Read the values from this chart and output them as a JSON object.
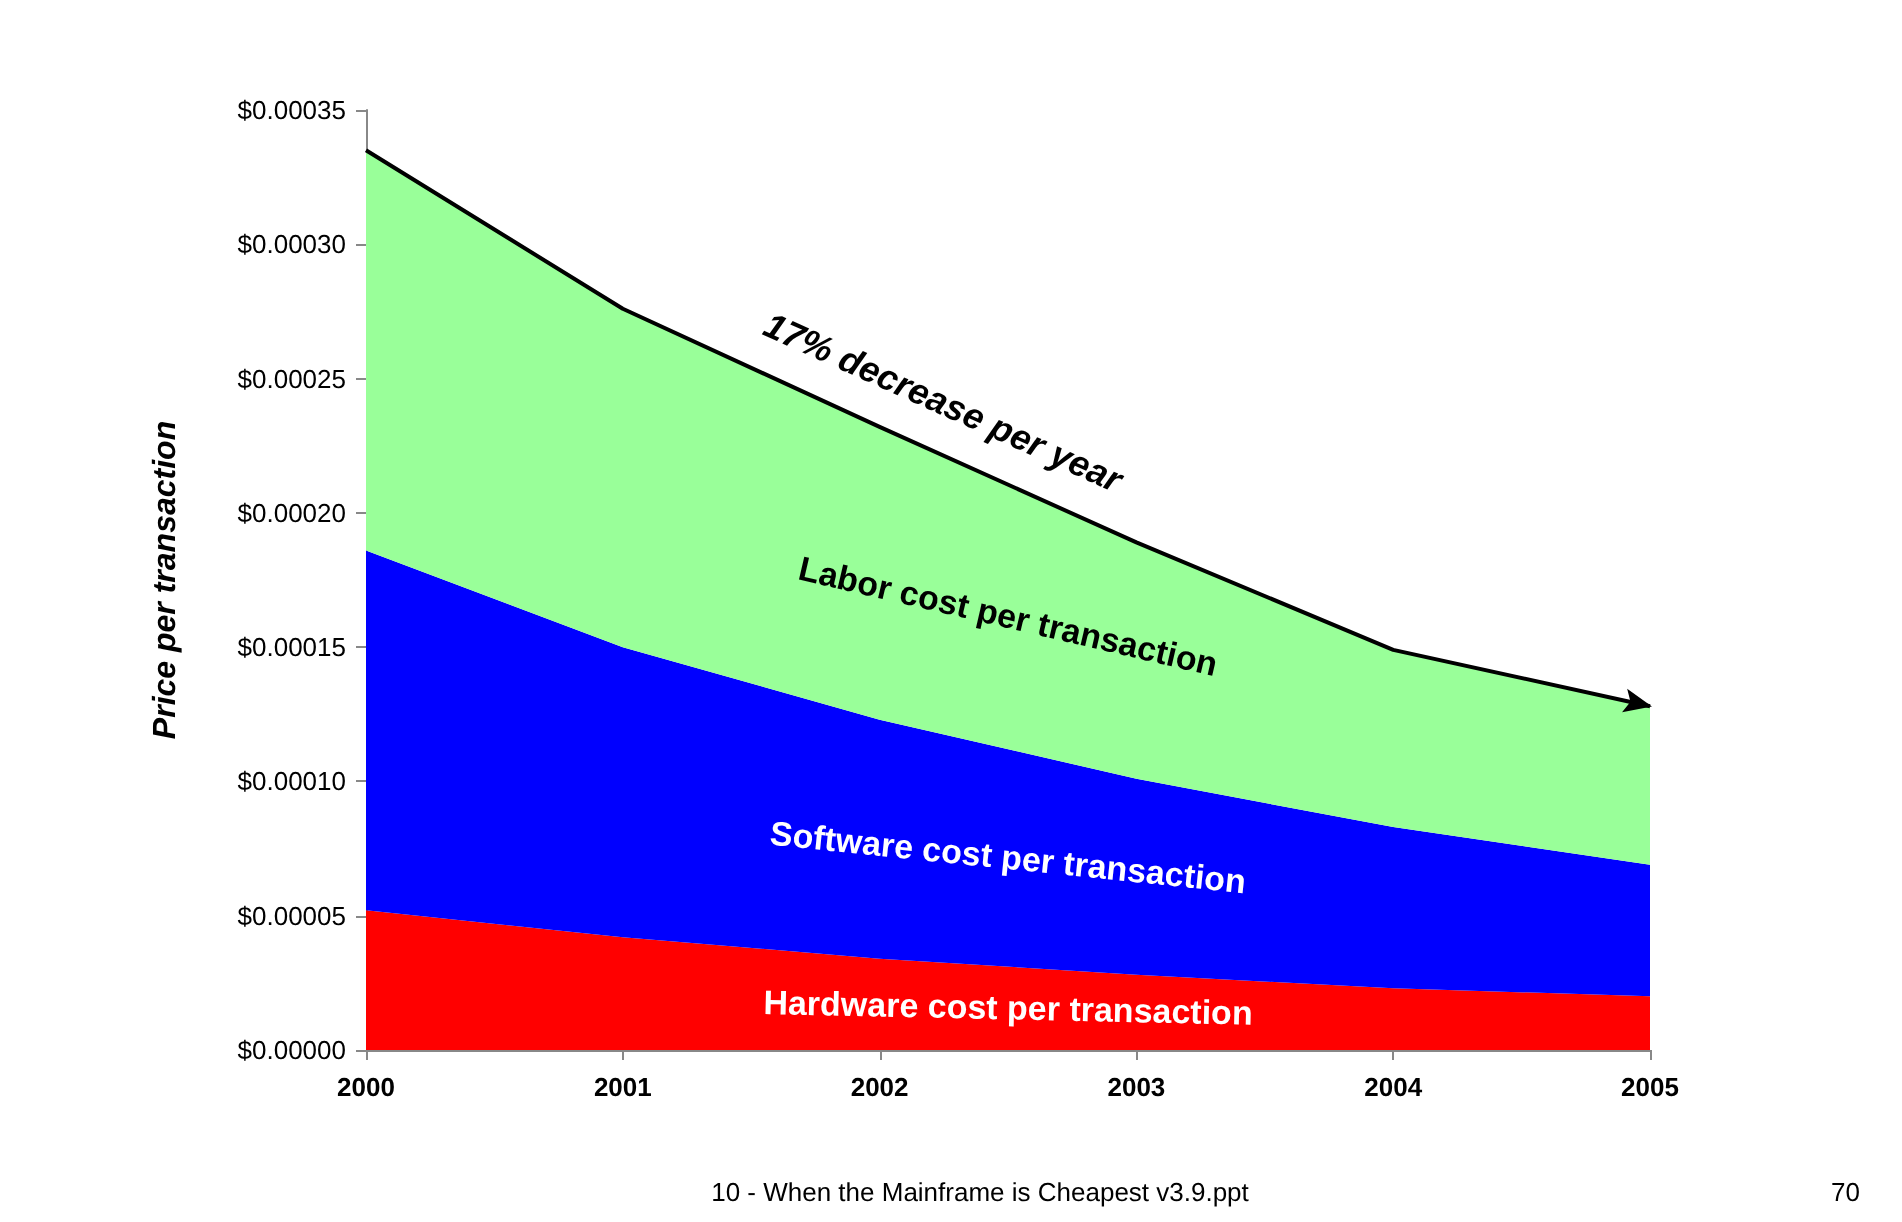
{
  "chart_data": {
    "type": "area",
    "stacked": true,
    "legend": false,
    "grid": false,
    "categories": [
      "2000",
      "2001",
      "2002",
      "2003",
      "2004",
      "2005"
    ],
    "ylabel": "Price per transaction",
    "ylim": [
      0,
      0.00035
    ],
    "yticks": [
      {
        "value": 0,
        "label": "$0.00000"
      },
      {
        "value": 5e-05,
        "label": "$0.00005"
      },
      {
        "value": 0.0001,
        "label": "$0.00010"
      },
      {
        "value": 0.00015,
        "label": "$0.00015"
      },
      {
        "value": 0.0002,
        "label": "$0.00020"
      },
      {
        "value": 0.00025,
        "label": "$0.00025"
      },
      {
        "value": 0.0003,
        "label": "$0.00030"
      },
      {
        "value": 0.00035,
        "label": "$0.00035"
      }
    ],
    "series": [
      {
        "name": "Hardware cost per transaction",
        "color": "#ff0000",
        "values": [
          5.2e-05,
          4.2e-05,
          3.4e-05,
          2.8e-05,
          2.3e-05,
          2e-05
        ]
      },
      {
        "name": "Software cost per transaction",
        "color": "#0000ff",
        "values": [
          0.000134,
          0.000108,
          8.9e-05,
          7.3e-05,
          6e-05,
          4.9e-05
        ]
      },
      {
        "name": "Labor cost per transaction",
        "color": "#99ff99",
        "values": [
          0.000149,
          0.000126,
          0.000109,
          8.8e-05,
          6.6e-05,
          5.9e-05
        ]
      }
    ],
    "annotations": [
      {
        "text": "17% decrease per year",
        "x": "2002",
        "y": 0.000232
      },
      "10 - When the Mainframe is Cheapest v3.9.ppt",
      "70"
    ]
  }
}
